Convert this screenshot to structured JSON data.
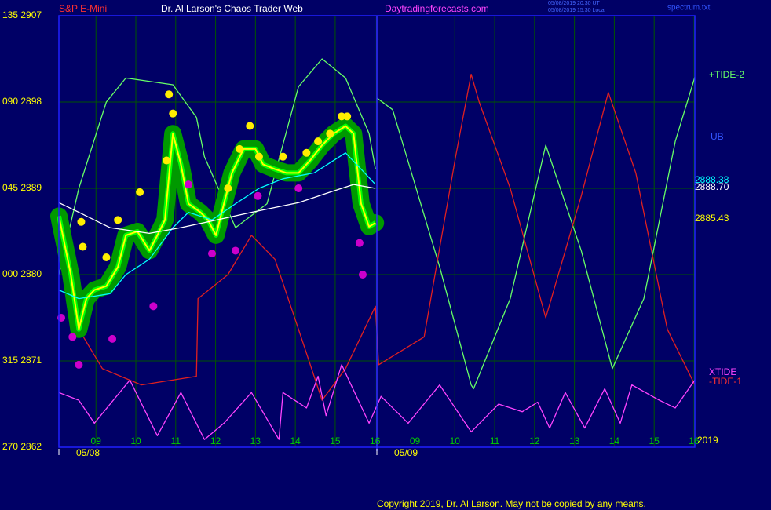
{
  "chart_data": {
    "type": "line",
    "symbol": "S&P E-Mini",
    "title": "Dr. Al Larson's Chaos Trader Web",
    "site": "Daytradingforecasts.com",
    "timestamps": [
      "05/08/2019 20:30 UT",
      "05/08/2019 15:30 Local"
    ],
    "file": "spectrum.txt",
    "annotations": [
      "UB",
      "2888.38",
      "2888.70",
      "2885.43",
      "2019"
    ],
    "dates": [
      "05/08",
      "05/09"
    ],
    "copyright": "Copyright 2019, Dr. Al Larson. May not be copied by any means.",
    "xlim": [
      -0.93,
      15.02
    ],
    "ylim": [
      2862,
      2907
    ],
    "grid": true,
    "xticks": [
      {
        "value": 0,
        "label": "09"
      },
      {
        "value": 1,
        "label": "10"
      },
      {
        "value": 2,
        "label": "11"
      },
      {
        "value": 3,
        "label": "12"
      },
      {
        "value": 4,
        "label": "13"
      },
      {
        "value": 5,
        "label": "14"
      },
      {
        "value": 6,
        "label": "15"
      },
      {
        "value": 7,
        "label": "16"
      },
      {
        "value": 8,
        "label": "09"
      },
      {
        "value": 9,
        "label": "10"
      },
      {
        "value": 10,
        "label": "11"
      },
      {
        "value": 11,
        "label": "12"
      },
      {
        "value": 12,
        "label": "13"
      },
      {
        "value": 13,
        "label": "14"
      },
      {
        "value": 14,
        "label": "15"
      },
      {
        "value": 15,
        "label": "16"
      }
    ],
    "yticks": [
      {
        "value": 2907,
        "label": "135 2907"
      },
      {
        "value": 2898,
        "label": "090 2898"
      },
      {
        "value": 2889,
        "label": "045 2889"
      },
      {
        "value": 2880,
        "label": "000 2880"
      },
      {
        "value": 2871,
        "label": "315 2871"
      },
      {
        "value": 2862,
        "label": "270 2862"
      }
    ],
    "series": [
      {
        "color": "#66ff66",
        "x": [
          -0.93,
          -0.43,
          0.26,
          0.75,
          1.93,
          2.52,
          2.72,
          3.5,
          4.29,
          5.08,
          5.67,
          6.26,
          6.85,
          7.01
        ],
        "values": [
          2880.0,
          2889.0,
          2898.0,
          2900.5,
          2899.8,
          2896.4,
          2892.3,
          2884.9,
          2887.4,
          2899.6,
          2902.5,
          2900.5,
          2894.7,
          2891.0
        ]
      },
      {
        "name": "+TIDE-2",
        "color": "#66ff66",
        "x": [
          7.05,
          7.44,
          8.03,
          8.62,
          9.41,
          9.47,
          10.39,
          11.28,
          12.17,
          12.95,
          13.74,
          14.53,
          15.02
        ],
        "values": [
          2898.4,
          2897.2,
          2889.0,
          2880.8,
          2868.5,
          2868.1,
          2877.5,
          2893.5,
          2882.5,
          2870.2,
          2877.5,
          2893.9,
          2900.6
        ]
      },
      {
        "name": "-TIDE-1",
        "color": "#e02020",
        "x": [
          -0.93,
          -0.43,
          0.16,
          1.14,
          2.52,
          2.56,
          3.31,
          3.9,
          4.49,
          5.08,
          5.67,
          6.26,
          7.01,
          7.09,
          8.23,
          9.02,
          9.41,
          9.61,
          10.39,
          11.28,
          12.17,
          12.85,
          13.54,
          14.33,
          15.02
        ],
        "values": [
          2884.1,
          2874.3,
          2870.2,
          2868.5,
          2869.4,
          2877.5,
          2880.0,
          2884.1,
          2881.6,
          2874.3,
          2866.9,
          2870.2,
          2876.7,
          2870.6,
          2873.5,
          2892.3,
          2900.9,
          2898.0,
          2889.0,
          2875.5,
          2888.2,
          2899.0,
          2890.6,
          2874.3,
          2868.5
        ]
      },
      {
        "name": "XTIDE",
        "color": "#ff44ff",
        "x": [
          -0.93,
          -0.43,
          -0.04,
          0.85,
          1.54,
          2.13,
          2.72,
          3.21,
          3.9,
          4.59,
          4.69,
          5.28,
          5.57,
          5.77,
          6.16,
          6.85,
          7.15,
          7.83,
          8.62,
          9.41,
          10.1,
          10.69,
          11.08,
          11.38,
          11.77,
          12.26,
          12.76,
          13.15,
          13.44,
          14.13,
          14.53,
          15.02
        ],
        "values": [
          2867.7,
          2866.9,
          2864.5,
          2869.0,
          2863.2,
          2867.7,
          2862.8,
          2864.5,
          2867.7,
          2862.8,
          2867.7,
          2866.1,
          2869.4,
          2865.3,
          2870.6,
          2864.5,
          2867.3,
          2864.5,
          2868.5,
          2863.6,
          2866.5,
          2865.7,
          2866.7,
          2864.0,
          2867.7,
          2864.0,
          2868.1,
          2864.5,
          2868.5,
          2866.9,
          2866.1,
          2869.0
        ]
      },
      {
        "color": "#ffff00",
        "halo_color": "#009900",
        "x": [
          -0.93,
          -0.63,
          -0.43,
          -0.24,
          -0.04,
          0.26,
          0.55,
          0.75,
          1.04,
          1.34,
          1.54,
          1.73,
          1.93,
          2.13,
          2.32,
          2.62,
          2.81,
          3.01,
          3.21,
          3.41,
          3.7,
          4.0,
          4.19,
          4.49,
          4.78,
          5.08,
          5.37,
          5.67,
          5.96,
          6.26,
          6.46,
          6.65,
          6.85,
          7.01
        ],
        "values": [
          2886.1,
          2880.0,
          2874.3,
          2877.5,
          2878.4,
          2878.8,
          2880.8,
          2884.1,
          2884.5,
          2882.5,
          2884.1,
          2885.7,
          2894.7,
          2891.5,
          2887.4,
          2886.5,
          2885.7,
          2884.1,
          2887.4,
          2890.6,
          2893.1,
          2893.1,
          2891.5,
          2891.0,
          2890.6,
          2890.6,
          2891.9,
          2893.5,
          2894.7,
          2895.5,
          2894.7,
          2887.4,
          2885.0,
          2885.4
        ]
      },
      {
        "color": "#00ffff",
        "x": [
          -0.93,
          -0.43,
          0.35,
          0.75,
          1.34,
          1.93,
          2.32,
          2.91,
          3.5,
          4.09,
          4.69,
          5.47,
          6.26,
          6.65,
          7.01
        ],
        "values": [
          2878.4,
          2877.5,
          2878.0,
          2880.0,
          2881.6,
          2884.9,
          2886.5,
          2885.7,
          2887.4,
          2889.0,
          2890.0,
          2890.6,
          2892.7,
          2891.0,
          2889.4
        ]
      },
      {
        "color": "#ffffff",
        "x": [
          -0.93,
          -0.43,
          0.35,
          1.34,
          2.13,
          2.91,
          3.9,
          5.08,
          5.87,
          6.46,
          7.01
        ],
        "values": [
          2887.5,
          2886.5,
          2884.9,
          2884.3,
          2884.9,
          2885.6,
          2886.5,
          2887.5,
          2888.6,
          2889.4,
          2889.0
        ]
      },
      {
        "color": "#ffee00",
        "marker": "dot",
        "x": [
          -0.37,
          -0.33,
          0.26,
          0.55,
          1.1,
          1.83,
          1.93,
          1.77,
          3.31,
          3.6,
          3.86,
          4.09,
          4.69,
          5.28,
          5.57,
          5.87,
          6.16,
          6.3
        ],
        "values": [
          2885.5,
          2882.9,
          2881.8,
          2885.7,
          2888.6,
          2898.8,
          2896.8,
          2891.9,
          2889.0,
          2893.1,
          2895.5,
          2892.3,
          2892.3,
          2892.7,
          2893.9,
          2894.7,
          2896.5,
          2896.5
        ]
      },
      {
        "color": "#cc00cc",
        "marker": "dot",
        "x": [
          -0.87,
          -0.59,
          -0.43,
          0.41,
          1.44,
          2.32,
          2.91,
          3.5,
          4.06,
          5.08,
          6.61,
          6.69
        ],
        "values": [
          2875.5,
          2873.5,
          2870.6,
          2873.3,
          2876.7,
          2889.4,
          2882.2,
          2882.5,
          2888.2,
          2889.0,
          2883.3,
          2880.0
        ]
      }
    ]
  }
}
